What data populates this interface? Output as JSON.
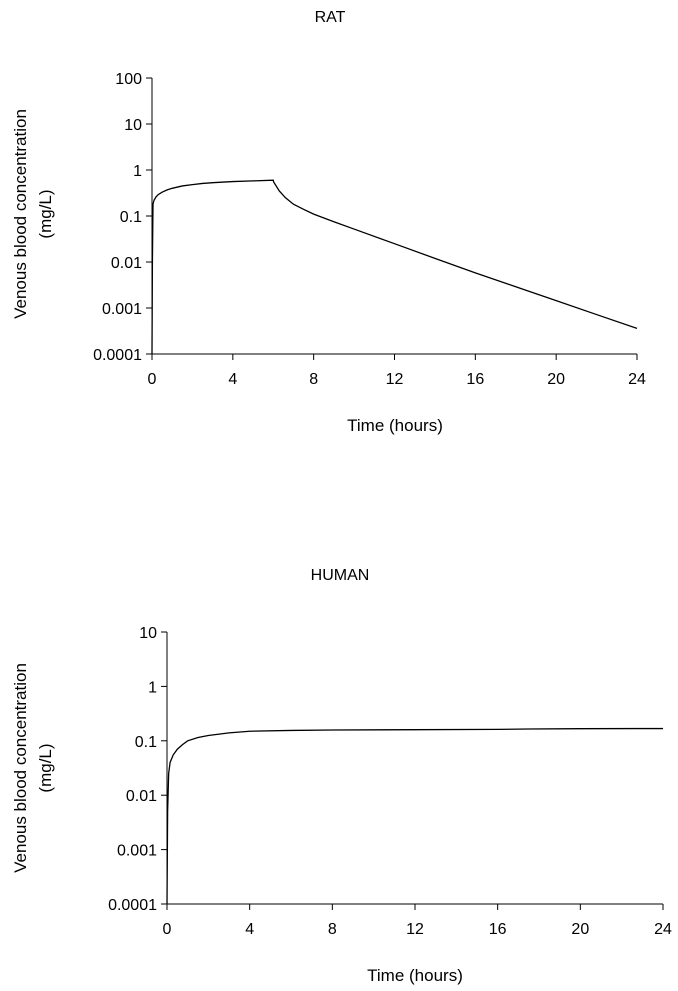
{
  "chart_data": [
    {
      "type": "line",
      "title": "RAT",
      "xlabel": "Time (hours)",
      "ylabel_line1": "Venous blood concentration",
      "ylabel_line2": "(mg/L)",
      "y_scale": "log",
      "xlim": [
        0,
        24
      ],
      "ylim": [
        0.0001,
        100
      ],
      "x_ticks": [
        0,
        4,
        8,
        12,
        16,
        20,
        24
      ],
      "y_ticks": [
        0.0001,
        0.001,
        0.01,
        0.1,
        1,
        10,
        100
      ],
      "x_tick_labels": [
        "0",
        "4",
        "8",
        "12",
        "16",
        "20",
        "24"
      ],
      "y_tick_labels": [
        "0.0001",
        "0.001",
        "0.01",
        "0.1",
        "1",
        "10",
        "100"
      ],
      "grid": false,
      "line_color": "#000000",
      "series": [
        {
          "x": [
            0,
            0.02,
            0.05,
            0.1,
            0.2,
            0.3,
            0.5,
            0.75,
            1,
            1.5,
            2,
            2.5,
            3,
            4,
            5,
            6,
            6.02,
            6.3,
            6.6,
            7,
            7.5,
            8,
            9,
            10,
            12,
            14,
            16,
            18,
            20,
            22,
            24
          ],
          "y": [
            0.0001,
            0.01,
            0.18,
            0.22,
            0.26,
            0.29,
            0.33,
            0.37,
            0.4,
            0.45,
            0.48,
            0.51,
            0.53,
            0.56,
            0.58,
            0.6,
            0.55,
            0.35,
            0.25,
            0.18,
            0.14,
            0.11,
            0.075,
            0.052,
            0.025,
            0.012,
            0.0058,
            0.0029,
            0.00145,
            0.00072,
            0.00036
          ]
        }
      ]
    },
    {
      "type": "line",
      "title": "HUMAN",
      "xlabel": "Time (hours)",
      "ylabel_line1": "Venous blood concentration",
      "ylabel_line2": "(mg/L)",
      "y_scale": "log",
      "xlim": [
        0,
        24
      ],
      "ylim": [
        0.0001,
        10
      ],
      "x_ticks": [
        0,
        4,
        8,
        12,
        16,
        20,
        24
      ],
      "y_ticks": [
        0.0001,
        0.001,
        0.01,
        0.1,
        1,
        10
      ],
      "x_tick_labels": [
        "0",
        "4",
        "8",
        "12",
        "16",
        "20",
        "24"
      ],
      "y_tick_labels": [
        "0.0001",
        "0.001",
        "0.01",
        "0.1",
        "1",
        "10"
      ],
      "grid": false,
      "line_color": "#000000",
      "series": [
        {
          "x": [
            0,
            0.03,
            0.08,
            0.15,
            0.3,
            0.5,
            0.75,
            1,
            1.5,
            2,
            3,
            4,
            6,
            8,
            12,
            16,
            17.5,
            20,
            24
          ],
          "y": [
            0.0001,
            0.005,
            0.025,
            0.04,
            0.055,
            0.07,
            0.085,
            0.1,
            0.115,
            0.125,
            0.14,
            0.15,
            0.155,
            0.158,
            0.16,
            0.162,
            0.165,
            0.167,
            0.168
          ]
        }
      ]
    }
  ]
}
